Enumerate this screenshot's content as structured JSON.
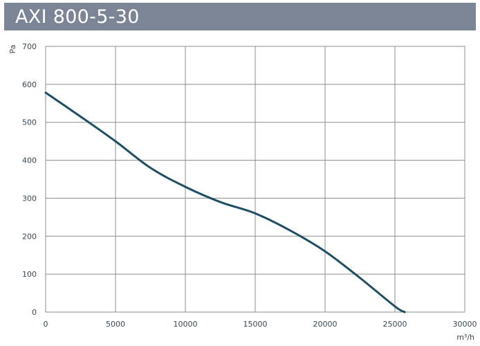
{
  "header": {
    "title": "AXI 800-5-30"
  },
  "chart_data": {
    "type": "line",
    "title": "AXI 800-5-30",
    "xlabel": "m³/h",
    "ylabel": "Pa",
    "xlim": [
      0,
      30000
    ],
    "ylim": [
      0,
      700
    ],
    "x_ticks": [
      0,
      5000,
      10000,
      15000,
      20000,
      25000,
      30000
    ],
    "y_ticks": [
      0,
      100,
      200,
      300,
      400,
      500,
      600,
      700
    ],
    "grid": true,
    "series": [
      {
        "color": "#1f4e64",
        "x": [
          0,
          2500,
          5000,
          7500,
          10000,
          12500,
          15000,
          17500,
          20000,
          22500,
          25000,
          25700
        ],
        "y": [
          578,
          515,
          450,
          380,
          330,
          290,
          260,
          215,
          160,
          90,
          15,
          0
        ]
      }
    ]
  }
}
